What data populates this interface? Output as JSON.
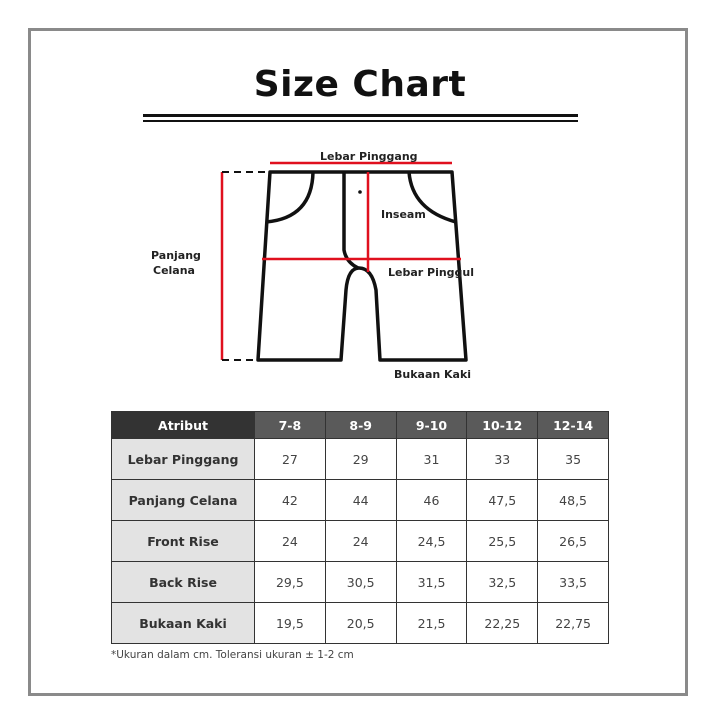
{
  "title": "Size Chart",
  "diagram": {
    "waist": "Lebar Pinggang",
    "length_line1": "Panjang",
    "length_line2": "Celana",
    "inseam": "Inseam",
    "hip": "Lebar Pinggul",
    "leg_opening": "Bukaan Kaki",
    "accent_color": "#e0101e"
  },
  "table": {
    "headers": [
      "Atribut",
      "7-8",
      "8-9",
      "9-10",
      "10-12",
      "12-14"
    ],
    "rows": [
      {
        "label": "Lebar Pinggang",
        "values": [
          "27",
          "29",
          "31",
          "33",
          "35"
        ]
      },
      {
        "label": "Panjang Celana",
        "values": [
          "42",
          "44",
          "46",
          "47,5",
          "48,5"
        ]
      },
      {
        "label": "Front Rise",
        "values": [
          "24",
          "24",
          "24,5",
          "25,5",
          "26,5"
        ]
      },
      {
        "label": "Back Rise",
        "values": [
          "29,5",
          "30,5",
          "31,5",
          "32,5",
          "33,5"
        ]
      },
      {
        "label": "Bukaan Kaki",
        "values": [
          "19,5",
          "20,5",
          "21,5",
          "22,25",
          "22,75"
        ]
      }
    ]
  },
  "note": "*Ukuran dalam cm. Toleransi ukuran ± 1-2 cm"
}
